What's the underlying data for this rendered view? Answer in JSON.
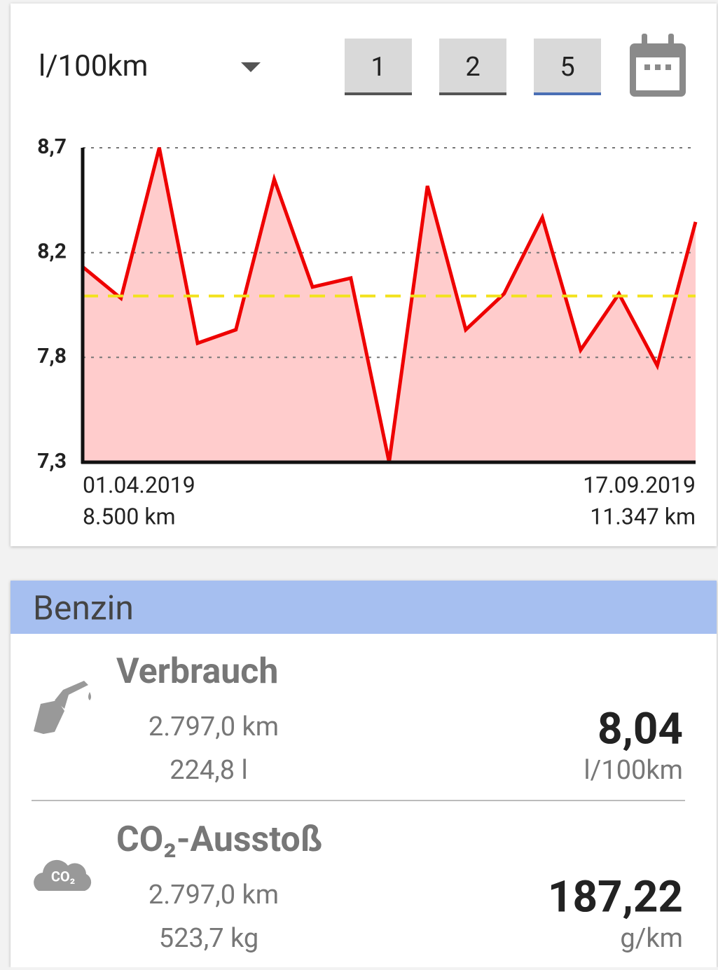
{
  "controls": {
    "unit_selector": "l/100km",
    "range_buttons": [
      "1",
      "2",
      "5"
    ]
  },
  "chart_data": {
    "type": "area",
    "categories": [
      "01.04.2019",
      null,
      null,
      null,
      null,
      null,
      null,
      null,
      null,
      null,
      null,
      null,
      null,
      null,
      null,
      null,
      "17.09.2019"
    ],
    "category_sublabels": [
      "8.500 km",
      null,
      null,
      null,
      null,
      null,
      null,
      null,
      null,
      null,
      null,
      null,
      null,
      null,
      null,
      null,
      "11.347 km"
    ],
    "values": [
      8.17,
      8.03,
      8.7,
      7.83,
      7.89,
      8.56,
      8.08,
      8.12,
      7.3,
      8.53,
      7.89,
      8.05,
      8.39,
      7.8,
      8.05,
      7.73,
      8.37
    ],
    "color": "#ee0000",
    "fill_color": "#ffcccc",
    "average": 8.04,
    "average_color": "#f2e21c",
    "ylim": [
      7.3,
      8.7
    ],
    "yticks": [
      {
        "value": 7.3,
        "label": "7,3"
      },
      {
        "value": 7.767,
        "label": "7,8"
      },
      {
        "value": 8.233,
        "label": "8,2"
      },
      {
        "value": 8.7,
        "label": "8,7"
      }
    ],
    "grid": true
  },
  "summary": {
    "fuel": "Benzin",
    "rows": [
      {
        "title": "Verbrauch",
        "distance": "2.797,0 km",
        "amount": "224,8 l",
        "value": "8,04",
        "unit": "l/100km"
      },
      {
        "title": "CO₂-Ausstoß",
        "icon_text": "CO₂",
        "distance": "2.797,0 km",
        "amount": "523,7 kg",
        "value": "187,22",
        "unit": "g/km"
      }
    ]
  }
}
